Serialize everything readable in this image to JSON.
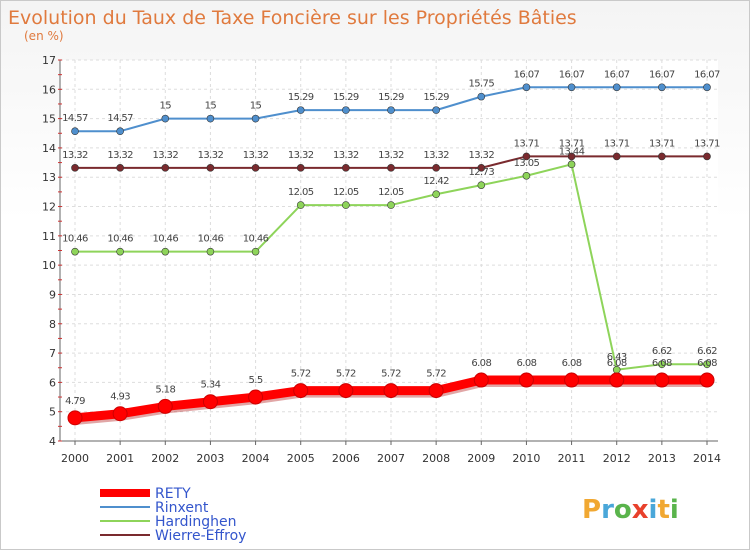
{
  "chart_data": {
    "type": "line",
    "title": "Evolution du Taux de Taxe Foncière sur les Propriétés Bâties",
    "subtitle": "(en %)",
    "x": [
      "2000",
      "2001",
      "2002",
      "2003",
      "2004",
      "2005",
      "2006",
      "2007",
      "2008",
      "2009",
      "2010",
      "2011",
      "2012",
      "2013",
      "2014"
    ],
    "ylim": [
      4,
      17
    ],
    "yticks": [
      "4",
      "5",
      "6",
      "7",
      "8",
      "9",
      "10",
      "11",
      "12",
      "13",
      "14",
      "15",
      "16",
      "17"
    ],
    "grid": true,
    "legend_position": "bottom-left",
    "series": [
      {
        "name": "RETY",
        "color": "#ff0000",
        "values": [
          4.79,
          4.93,
          5.18,
          5.34,
          5.5,
          5.72,
          5.72,
          5.72,
          5.72,
          6.08,
          6.08,
          6.08,
          6.08,
          6.08,
          6.08
        ],
        "labels": [
          "4.79",
          "4.93",
          "5.18",
          "5.34",
          "5.5",
          "5.72",
          "5.72",
          "5.72",
          "5.72",
          "6.08",
          "6.08",
          "6.08",
          "6.08",
          "6.08",
          "6.08"
        ]
      },
      {
        "name": "Rinxent",
        "color": "#4f8fcd",
        "values": [
          14.57,
          14.57,
          15,
          15,
          15,
          15.29,
          15.29,
          15.29,
          15.29,
          15.75,
          16.07,
          16.07,
          16.07,
          16.07,
          16.07
        ],
        "labels": [
          "14.57",
          "14.57",
          "15",
          "15",
          "15",
          "15.29",
          "15.29",
          "15.29",
          "15.29",
          "15.75",
          "16.07",
          "16.07",
          "16.07",
          "16.07",
          "16.07"
        ]
      },
      {
        "name": "Hardinghen",
        "color": "#8ed45a",
        "values": [
          10.46,
          10.46,
          10.46,
          10.46,
          10.46,
          12.05,
          12.05,
          12.05,
          12.42,
          12.73,
          13.05,
          13.44,
          6.43,
          6.62,
          6.62
        ],
        "labels": [
          "10.46",
          "10.46",
          "10.46",
          "10.46",
          "10.46",
          "12.05",
          "12.05",
          "12.05",
          "12.42",
          "12.73",
          "13.05",
          "13.44",
          "6.43",
          "6.62",
          "6.62"
        ]
      },
      {
        "name": "Wierre-Effroy",
        "color": "#7a2a2e",
        "values": [
          13.32,
          13.32,
          13.32,
          13.32,
          13.32,
          13.32,
          13.32,
          13.32,
          13.32,
          13.32,
          13.71,
          13.71,
          13.71,
          13.71,
          13.71
        ],
        "labels": [
          "13.32",
          "13.32",
          "13.32",
          "13.32",
          "13.32",
          "13.32",
          "13.32",
          "13.32",
          "13.32",
          "13.32",
          "13.71",
          "13.71",
          "13.71",
          "13.71",
          "13.71"
        ]
      }
    ]
  },
  "logo": {
    "text": "Proxiti"
  }
}
